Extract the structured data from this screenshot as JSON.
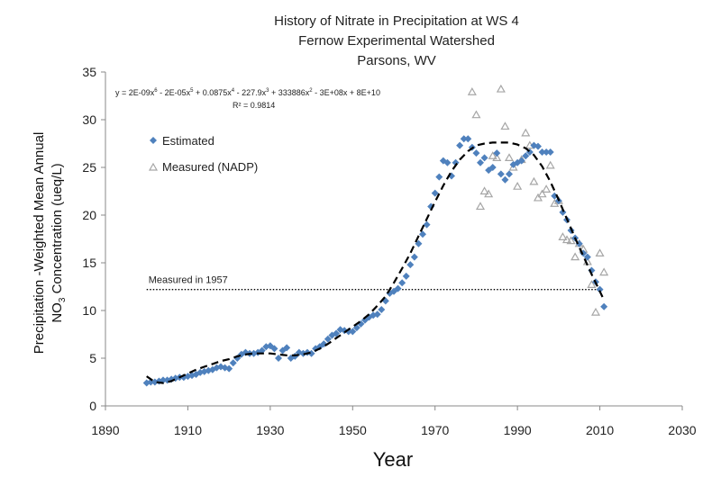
{
  "chart_data": {
    "type": "scatter",
    "title_lines": [
      "History of Nitrate in Precipitation at WS 4",
      "Fernow Experimental Watershed",
      "Parsons, WV"
    ],
    "xlabel": "Year",
    "ylabel_line1": "Precipitation -Weighted Mean Annual",
    "ylabel_line2_pre": "NO",
    "ylabel_line2_sub": "3",
    "ylabel_line2_post": " Concentration (ueq/L)",
    "xlim": [
      1890,
      2030
    ],
    "ylim": [
      0,
      35
    ],
    "xticks": [
      1890,
      1910,
      1930,
      1950,
      1970,
      1990,
      2010,
      2030
    ],
    "yticks": [
      0,
      5,
      10,
      15,
      20,
      25,
      30,
      35
    ],
    "equation_parts": [
      "y = 2E-09x",
      "6",
      " - 2E-05x",
      "5",
      " + 0.0875x",
      "4",
      " - 227.9x",
      "3",
      " + 333886x",
      "2",
      " - 3E+08x + 8E+10"
    ],
    "r_squared": "R² = 0.9814",
    "annotation": {
      "text": "Measured in 1957",
      "value": 12.2,
      "x_start": 1900,
      "x_end": 2010
    },
    "colors": {
      "estimated": "#4f81bd",
      "measured": "#a6a6a6",
      "fit": "#000000"
    },
    "legend": {
      "position": "upper-left",
      "items": [
        "Estimated",
        "Measured (NADP)"
      ]
    },
    "series": [
      {
        "name": "Estimated",
        "marker": "diamond",
        "points": [
          [
            1900,
            2.4
          ],
          [
            1901,
            2.5
          ],
          [
            1902,
            2.5
          ],
          [
            1903,
            2.6
          ],
          [
            1904,
            2.7
          ],
          [
            1905,
            2.7
          ],
          [
            1906,
            2.8
          ],
          [
            1907,
            2.9
          ],
          [
            1908,
            3.0
          ],
          [
            1909,
            3.0
          ],
          [
            1910,
            3.1
          ],
          [
            1911,
            3.2
          ],
          [
            1912,
            3.3
          ],
          [
            1913,
            3.5
          ],
          [
            1914,
            3.6
          ],
          [
            1915,
            3.7
          ],
          [
            1916,
            3.8
          ],
          [
            1917,
            4.0
          ],
          [
            1918,
            4.1
          ],
          [
            1919,
            4.0
          ],
          [
            1920,
            3.9
          ],
          [
            1921,
            4.5
          ],
          [
            1922,
            5.0
          ],
          [
            1923,
            5.4
          ],
          [
            1924,
            5.6
          ],
          [
            1925,
            5.5
          ],
          [
            1926,
            5.5
          ],
          [
            1927,
            5.6
          ],
          [
            1928,
            5.8
          ],
          [
            1929,
            6.2
          ],
          [
            1930,
            6.3
          ],
          [
            1931,
            6.0
          ],
          [
            1932,
            5.0
          ],
          [
            1933,
            5.8
          ],
          [
            1934,
            6.1
          ],
          [
            1935,
            5.0
          ],
          [
            1936,
            5.2
          ],
          [
            1937,
            5.6
          ],
          [
            1938,
            5.5
          ],
          [
            1939,
            5.6
          ],
          [
            1940,
            5.5
          ],
          [
            1941,
            6.0
          ],
          [
            1942,
            6.2
          ],
          [
            1943,
            6.5
          ],
          [
            1944,
            7.0
          ],
          [
            1945,
            7.4
          ],
          [
            1946,
            7.6
          ],
          [
            1947,
            8.0
          ],
          [
            1948,
            7.9
          ],
          [
            1949,
            7.8
          ],
          [
            1950,
            7.8
          ],
          [
            1951,
            8.2
          ],
          [
            1952,
            8.6
          ],
          [
            1953,
            9.0
          ],
          [
            1954,
            9.3
          ],
          [
            1955,
            9.5
          ],
          [
            1956,
            9.6
          ],
          [
            1957,
            10.1
          ],
          [
            1958,
            11.0
          ],
          [
            1959,
            11.8
          ],
          [
            1960,
            12.0
          ],
          [
            1961,
            12.3
          ],
          [
            1962,
            12.9
          ],
          [
            1963,
            13.6
          ],
          [
            1964,
            14.8
          ],
          [
            1965,
            15.6
          ],
          [
            1966,
            17.0
          ],
          [
            1967,
            18.0
          ],
          [
            1968,
            19.0
          ],
          [
            1969,
            20.9
          ],
          [
            1970,
            22.3
          ],
          [
            1971,
            24.0
          ],
          [
            1972,
            25.7
          ],
          [
            1973,
            25.5
          ],
          [
            1974,
            24.1
          ],
          [
            1975,
            25.5
          ],
          [
            1976,
            27.3
          ],
          [
            1977,
            28.0
          ],
          [
            1978,
            28.0
          ],
          [
            1979,
            27.1
          ],
          [
            1980,
            26.5
          ],
          [
            1981,
            25.5
          ],
          [
            1982,
            26.0
          ],
          [
            1983,
            24.7
          ],
          [
            1984,
            25.0
          ],
          [
            1985,
            26.5
          ],
          [
            1986,
            24.3
          ],
          [
            1987,
            23.7
          ],
          [
            1988,
            24.3
          ],
          [
            1989,
            25.3
          ],
          [
            1990,
            25.5
          ],
          [
            1991,
            25.7
          ],
          [
            1992,
            26.2
          ],
          [
            1993,
            26.6
          ],
          [
            1994,
            27.3
          ],
          [
            1995,
            27.2
          ],
          [
            1996,
            26.6
          ],
          [
            1997,
            26.6
          ],
          [
            1998,
            26.6
          ],
          [
            1999,
            22.0
          ],
          [
            2000,
            21.5
          ],
          [
            2001,
            20.3
          ],
          [
            2002,
            19.5
          ],
          [
            2003,
            18.4
          ],
          [
            2004,
            17.6
          ],
          [
            2005,
            17.0
          ],
          [
            2006,
            16.0
          ],
          [
            2007,
            15.6
          ],
          [
            2008,
            14.2
          ],
          [
            2009,
            13.0
          ],
          [
            2010,
            12.2
          ],
          [
            2011,
            10.4
          ]
        ]
      },
      {
        "name": "Measured (NADP)",
        "marker": "triangle-open",
        "points": [
          [
            1979,
            32.9
          ],
          [
            1980,
            30.5
          ],
          [
            1981,
            20.9
          ],
          [
            1982,
            22.5
          ],
          [
            1983,
            22.2
          ],
          [
            1984,
            26.2
          ],
          [
            1985,
            26.0
          ],
          [
            1986,
            33.2
          ],
          [
            1987,
            29.3
          ],
          [
            1988,
            26.0
          ],
          [
            1989,
            25.0
          ],
          [
            1990,
            23.0
          ],
          [
            1991,
            25.8
          ],
          [
            1992,
            28.6
          ],
          [
            1993,
            27.3
          ],
          [
            1994,
            23.5
          ],
          [
            1995,
            21.8
          ],
          [
            1996,
            22.2
          ],
          [
            1997,
            22.7
          ],
          [
            1998,
            25.2
          ],
          [
            1999,
            21.2
          ],
          [
            2000,
            21.5
          ],
          [
            2001,
            17.7
          ],
          [
            2002,
            17.4
          ],
          [
            2003,
            17.3
          ],
          [
            2004,
            15.6
          ],
          [
            2005,
            17.0
          ],
          [
            2006,
            16.4
          ],
          [
            2007,
            15.1
          ],
          [
            2008,
            12.7
          ],
          [
            2009,
            9.8
          ],
          [
            2010,
            16.0
          ],
          [
            2011,
            14.0
          ]
        ]
      }
    ],
    "fit": {
      "name": "6th-order polynomial fit",
      "style": "dashed",
      "points": [
        [
          1900,
          3.1
        ],
        [
          1902,
          2.5
        ],
        [
          1904,
          2.4
        ],
        [
          1906,
          2.6
        ],
        [
          1908,
          3.0
        ],
        [
          1910,
          3.4
        ],
        [
          1912,
          3.8
        ],
        [
          1914,
          4.1
        ],
        [
          1916,
          4.4
        ],
        [
          1918,
          4.7
        ],
        [
          1920,
          4.9
        ],
        [
          1922,
          5.2
        ],
        [
          1924,
          5.4
        ],
        [
          1926,
          5.5
        ],
        [
          1928,
          5.5
        ],
        [
          1930,
          5.5
        ],
        [
          1932,
          5.4
        ],
        [
          1934,
          5.3
        ],
        [
          1936,
          5.3
        ],
        [
          1938,
          5.4
        ],
        [
          1940,
          5.6
        ],
        [
          1942,
          6.0
        ],
        [
          1944,
          6.5
        ],
        [
          1946,
          7.1
        ],
        [
          1948,
          7.7
        ],
        [
          1950,
          8.3
        ],
        [
          1952,
          8.9
        ],
        [
          1954,
          9.6
        ],
        [
          1956,
          10.5
        ],
        [
          1958,
          11.5
        ],
        [
          1960,
          12.9
        ],
        [
          1962,
          14.4
        ],
        [
          1964,
          16.0
        ],
        [
          1966,
          17.8
        ],
        [
          1968,
          19.6
        ],
        [
          1970,
          21.4
        ],
        [
          1972,
          23.1
        ],
        [
          1974,
          24.6
        ],
        [
          1976,
          25.8
        ],
        [
          1978,
          26.7
        ],
        [
          1980,
          27.3
        ],
        [
          1982,
          27.5
        ],
        [
          1984,
          27.6
        ],
        [
          1986,
          27.6
        ],
        [
          1988,
          27.6
        ],
        [
          1990,
          27.4
        ],
        [
          1992,
          27.0
        ],
        [
          1994,
          26.3
        ],
        [
          1996,
          25.1
        ],
        [
          1998,
          23.5
        ],
        [
          2000,
          21.6
        ],
        [
          2002,
          19.6
        ],
        [
          2004,
          17.6
        ],
        [
          2006,
          15.7
        ],
        [
          2008,
          13.8
        ],
        [
          2010,
          12.0
        ],
        [
          2011,
          11.1
        ]
      ]
    }
  }
}
